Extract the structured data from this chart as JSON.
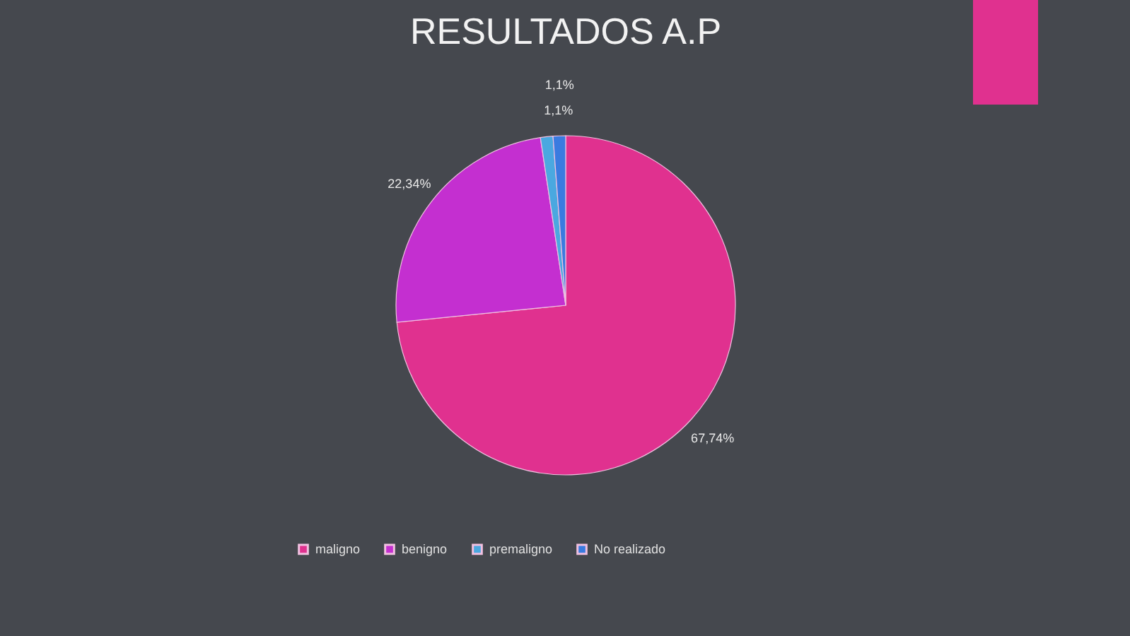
{
  "chart_data": {
    "type": "pie",
    "title": "RESULTADOS A.P",
    "categories": [
      "maligno",
      "benigno",
      "premaligno",
      "No realizado"
    ],
    "values": [
      67.74,
      22.34,
      1.1,
      1.1
    ],
    "value_labels": [
      "67,74%",
      "22,34%",
      "1,1%",
      "1,1%"
    ],
    "colors": [
      "#e0318f",
      "#c42fd0",
      "#4aa8e0",
      "#3a7be0"
    ],
    "legend": "bottom"
  }
}
